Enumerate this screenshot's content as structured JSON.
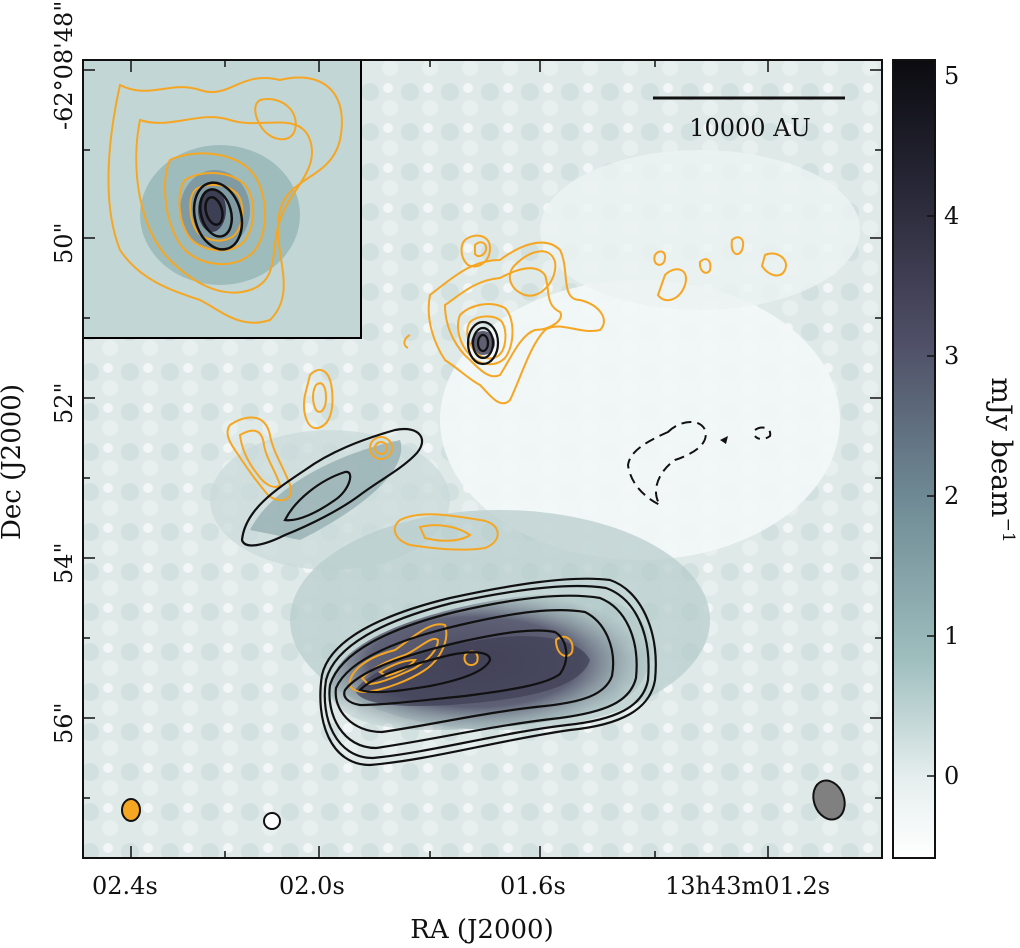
{
  "axes": {
    "xlabel": "RA (J2000)",
    "ylabel": "Dec (J2000)",
    "x_ticks": [
      "02.4s",
      "02.0s",
      "01.6s",
      "13h43m01.2s"
    ],
    "y_ticks": [
      "-62°08'48\"",
      "50\"",
      "52\"",
      "54\"",
      "56\""
    ]
  },
  "colorbar": {
    "label": "mJy beam",
    "label_exponent": "−1",
    "ticks": [
      "5",
      "4",
      "3",
      "2",
      "1",
      "0"
    ],
    "range_mjy": [
      -0.55,
      5.1
    ],
    "colors": {
      "low": "#ffffff",
      "mid": "#8fb2b2",
      "high": "#0b0b10"
    }
  },
  "scalebar": {
    "label": "10000 AU"
  },
  "contours": {
    "orange_color": "#f5a623",
    "black_color": "#111111",
    "dashed_negative": true
  },
  "beams": {
    "orange": "orange",
    "black": "white-outline",
    "gray": "#808080"
  },
  "inset": {
    "present": true
  }
}
